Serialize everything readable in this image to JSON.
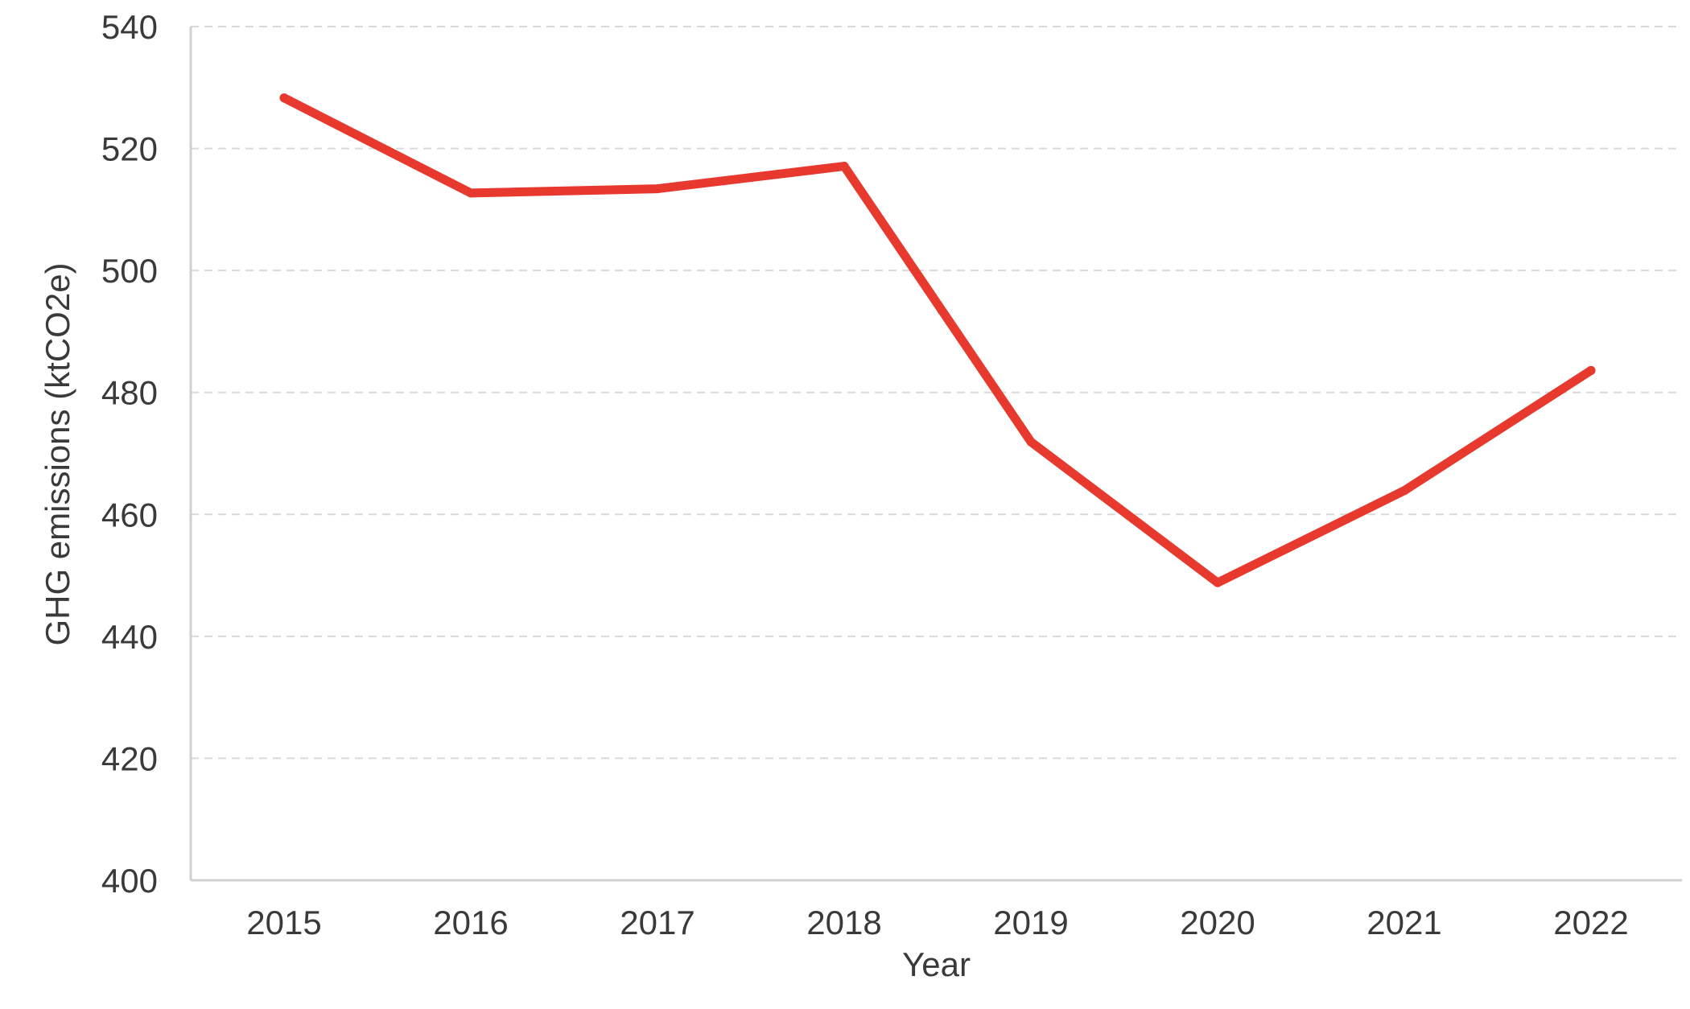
{
  "chart_data": {
    "type": "line",
    "title": "",
    "xlabel": "Year",
    "ylabel": "GHG emissions (ktCO2e)",
    "categories": [
      "2015",
      "2016",
      "2017",
      "2018",
      "2019",
      "2020",
      "2021",
      "2022"
    ],
    "series": [
      {
        "values": [
          528.3,
          512.7,
          513.4,
          517.1,
          471.9,
          448.8,
          463.9,
          483.6
        ],
        "color": "#e8392e"
      }
    ],
    "ylim": [
      400,
      540
    ],
    "yticks": [
      400,
      420,
      440,
      460,
      480,
      500,
      520,
      540
    ],
    "grid": true,
    "legend": "none"
  }
}
